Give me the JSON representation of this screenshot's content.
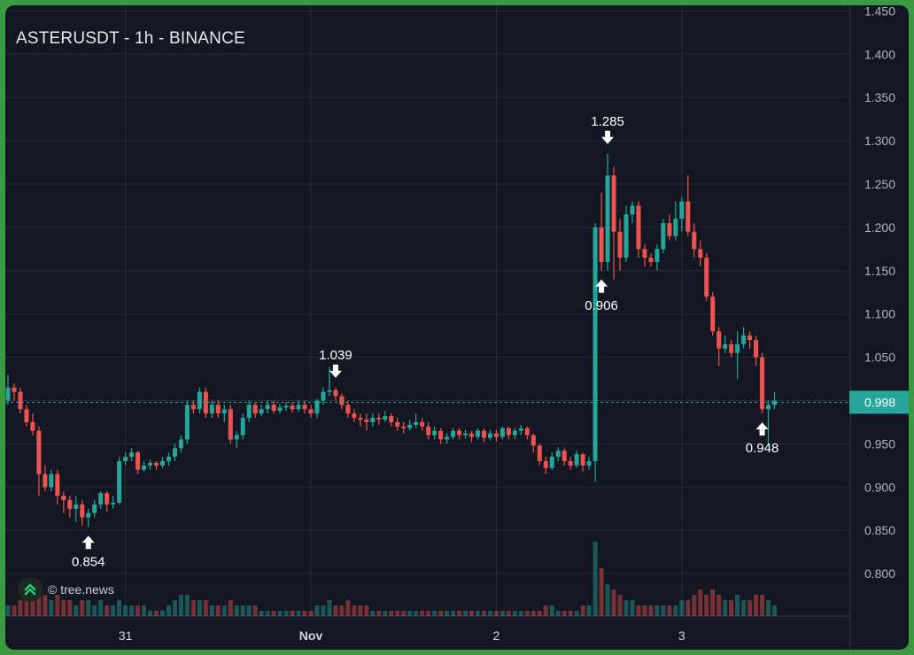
{
  "title": "ASTERUSDT - 1h - BINANCE",
  "watermark": {
    "text": "© tree.news",
    "logo": "tree-logo-icon"
  },
  "colors": {
    "up": "#26a69a",
    "down": "#ef5350",
    "background": "#131722",
    "grid": "#242a36",
    "price_line": "#26a69a",
    "frame": "#3c9a3f"
  },
  "chart_data": {
    "type": "candlestick",
    "symbol": "ASTERUSDT",
    "interval": "1h",
    "exchange": "BINANCE",
    "y_axis": {
      "ticks": [
        "1.450",
        "1.400",
        "1.350",
        "1.300",
        "1.250",
        "1.200",
        "1.150",
        "1.100",
        "1.050",
        "1.000",
        "0.950",
        "0.900",
        "0.850",
        "0.800"
      ],
      "range": [
        0.75,
        1.455
      ]
    },
    "x_axis": {
      "ticks": [
        {
          "label": "31",
          "bar": 19
        },
        {
          "label": "Nov",
          "bar": 49
        },
        {
          "label": "2",
          "bar": 79
        },
        {
          "label": "3",
          "bar": 109
        }
      ]
    },
    "current_price": "0.998",
    "annotations": [
      {
        "label": "0.854",
        "bar": 13,
        "type": "low"
      },
      {
        "label": "1.039",
        "bar": 53,
        "type": "high"
      },
      {
        "label": "0.906",
        "bar": 96,
        "type": "low"
      },
      {
        "label": "1.285",
        "bar": 97,
        "type": "high"
      },
      {
        "label": "0.948",
        "bar": 122,
        "type": "low"
      }
    ],
    "candles": [
      [
        1.0,
        1.015,
        1.03,
        0.995,
        2
      ],
      [
        1.015,
        1.01,
        1.02,
        1.0,
        2
      ],
      [
        1.01,
        0.99,
        1.015,
        0.985,
        3
      ],
      [
        0.99,
        0.975,
        0.995,
        0.97,
        4
      ],
      [
        0.975,
        0.965,
        0.985,
        0.96,
        5
      ],
      [
        0.965,
        0.915,
        0.97,
        0.89,
        5
      ],
      [
        0.915,
        0.9,
        0.925,
        0.895,
        4
      ],
      [
        0.9,
        0.915,
        0.92,
        0.895,
        3
      ],
      [
        0.915,
        0.89,
        0.92,
        0.88,
        4
      ],
      [
        0.89,
        0.885,
        0.895,
        0.87,
        3
      ],
      [
        0.885,
        0.875,
        0.89,
        0.865,
        3
      ],
      [
        0.875,
        0.88,
        0.89,
        0.86,
        2
      ],
      [
        0.88,
        0.865,
        0.885,
        0.855,
        3
      ],
      [
        0.865,
        0.87,
        0.875,
        0.854,
        3
      ],
      [
        0.87,
        0.88,
        0.885,
        0.865,
        2
      ],
      [
        0.88,
        0.893,
        0.895,
        0.875,
        3
      ],
      [
        0.893,
        0.88,
        0.895,
        0.872,
        2
      ],
      [
        0.88,
        0.882,
        0.89,
        0.875,
        2
      ],
      [
        0.882,
        0.93,
        0.935,
        0.88,
        3
      ],
      [
        0.93,
        0.935,
        0.94,
        0.925,
        2
      ],
      [
        0.935,
        0.94,
        0.945,
        0.93,
        2
      ],
      [
        0.94,
        0.92,
        0.942,
        0.915,
        2
      ],
      [
        0.92,
        0.925,
        0.93,
        0.918,
        2
      ],
      [
        0.925,
        0.928,
        0.932,
        0.92,
        1
      ],
      [
        0.928,
        0.925,
        0.93,
        0.92,
        1
      ],
      [
        0.925,
        0.93,
        0.935,
        0.922,
        1
      ],
      [
        0.93,
        0.935,
        0.94,
        0.925,
        2
      ],
      [
        0.935,
        0.945,
        0.95,
        0.93,
        3
      ],
      [
        0.945,
        0.955,
        0.96,
        0.94,
        4
      ],
      [
        0.955,
        0.995,
        1.0,
        0.95,
        4
      ],
      [
        0.995,
        0.99,
        1.0,
        0.985,
        3
      ],
      [
        0.99,
        1.01,
        1.015,
        0.985,
        3
      ],
      [
        1.01,
        0.985,
        1.015,
        0.98,
        3
      ],
      [
        0.985,
        0.995,
        1.0,
        0.98,
        2
      ],
      [
        0.995,
        0.985,
        1.0,
        0.98,
        2
      ],
      [
        0.985,
        0.99,
        0.995,
        0.975,
        2
      ],
      [
        0.99,
        0.955,
        0.995,
        0.95,
        3
      ],
      [
        0.955,
        0.96,
        0.965,
        0.945,
        2
      ],
      [
        0.96,
        0.98,
        0.985,
        0.955,
        2
      ],
      [
        0.98,
        0.995,
        1.0,
        0.975,
        2
      ],
      [
        0.995,
        0.985,
        0.998,
        0.98,
        2
      ],
      [
        0.985,
        0.99,
        0.995,
        0.982,
        1
      ],
      [
        0.99,
        0.995,
        1.0,
        0.985,
        1
      ],
      [
        0.995,
        0.988,
        1.0,
        0.985,
        1
      ],
      [
        0.988,
        0.992,
        0.996,
        0.985,
        1
      ],
      [
        0.992,
        0.994,
        0.998,
        0.988,
        1
      ],
      [
        0.994,
        0.99,
        0.998,
        0.986,
        1
      ],
      [
        0.99,
        0.995,
        1.0,
        0.987,
        1
      ],
      [
        0.995,
        0.99,
        1.0,
        0.985,
        1
      ],
      [
        0.99,
        0.985,
        0.995,
        0.98,
        1
      ],
      [
        0.985,
        1.0,
        1.002,
        0.98,
        2
      ],
      [
        1.0,
        1.01,
        1.015,
        0.995,
        2
      ],
      [
        1.01,
        1.012,
        1.039,
        1.005,
        3
      ],
      [
        1.012,
        1.005,
        1.015,
        1.0,
        2
      ],
      [
        1.005,
        0.995,
        1.008,
        0.99,
        2
      ],
      [
        0.995,
        0.985,
        1.0,
        0.98,
        3
      ],
      [
        0.985,
        0.98,
        0.99,
        0.975,
        2
      ],
      [
        0.98,
        0.978,
        0.985,
        0.97,
        2
      ],
      [
        0.978,
        0.975,
        0.985,
        0.965,
        2
      ],
      [
        0.975,
        0.98,
        0.985,
        0.97,
        1
      ],
      [
        0.98,
        0.978,
        0.985,
        0.972,
        1
      ],
      [
        0.978,
        0.982,
        0.988,
        0.975,
        1
      ],
      [
        0.982,
        0.975,
        0.985,
        0.97,
        1
      ],
      [
        0.975,
        0.97,
        0.98,
        0.965,
        1
      ],
      [
        0.97,
        0.968,
        0.975,
        0.962,
        1
      ],
      [
        0.968,
        0.972,
        0.978,
        0.965,
        1
      ],
      [
        0.972,
        0.975,
        0.985,
        0.968,
        1
      ],
      [
        0.975,
        0.97,
        0.98,
        0.965,
        1
      ],
      [
        0.97,
        0.96,
        0.975,
        0.955,
        1
      ],
      [
        0.96,
        0.965,
        0.97,
        0.955,
        1
      ],
      [
        0.965,
        0.955,
        0.968,
        0.95,
        1
      ],
      [
        0.955,
        0.958,
        0.962,
        0.95,
        1
      ],
      [
        0.958,
        0.965,
        0.968,
        0.955,
        1
      ],
      [
        0.965,
        0.96,
        0.968,
        0.955,
        1
      ],
      [
        0.96,
        0.962,
        0.966,
        0.956,
        1
      ],
      [
        0.962,
        0.958,
        0.965,
        0.952,
        1
      ],
      [
        0.958,
        0.965,
        0.968,
        0.955,
        1
      ],
      [
        0.965,
        0.957,
        0.968,
        0.952,
        1
      ],
      [
        0.957,
        0.962,
        0.966,
        0.954,
        1
      ],
      [
        0.962,
        0.958,
        0.966,
        0.953,
        1
      ],
      [
        0.958,
        0.968,
        0.97,
        0.955,
        1
      ],
      [
        0.968,
        0.96,
        0.97,
        0.955,
        1
      ],
      [
        0.96,
        0.965,
        0.968,
        0.955,
        1
      ],
      [
        0.965,
        0.968,
        0.972,
        0.96,
        1
      ],
      [
        0.968,
        0.96,
        0.97,
        0.955,
        1
      ],
      [
        0.96,
        0.948,
        0.962,
        0.94,
        1
      ],
      [
        0.948,
        0.93,
        0.95,
        0.925,
        1
      ],
      [
        0.93,
        0.922,
        0.935,
        0.915,
        2
      ],
      [
        0.922,
        0.935,
        0.94,
        0.92,
        2
      ],
      [
        0.935,
        0.942,
        0.946,
        0.93,
        1
      ],
      [
        0.942,
        0.93,
        0.945,
        0.925,
        1
      ],
      [
        0.93,
        0.925,
        0.935,
        0.92,
        1
      ],
      [
        0.925,
        0.938,
        0.942,
        0.922,
        1
      ],
      [
        0.938,
        0.925,
        0.94,
        0.918,
        2
      ],
      [
        0.925,
        0.93,
        0.935,
        0.92,
        2
      ],
      [
        0.93,
        1.2,
        1.205,
        0.906,
        14
      ],
      [
        1.2,
        1.16,
        1.24,
        1.15,
        9
      ],
      [
        1.16,
        1.26,
        1.285,
        1.15,
        6
      ],
      [
        1.26,
        1.195,
        1.27,
        1.14,
        5
      ],
      [
        1.195,
        1.165,
        1.21,
        1.15,
        4
      ],
      [
        1.165,
        1.215,
        1.225,
        1.16,
        3
      ],
      [
        1.215,
        1.225,
        1.23,
        1.205,
        3
      ],
      [
        1.225,
        1.175,
        1.23,
        1.165,
        2
      ],
      [
        1.175,
        1.165,
        1.18,
        1.155,
        2
      ],
      [
        1.165,
        1.16,
        1.17,
        1.155,
        2
      ],
      [
        1.16,
        1.175,
        1.18,
        1.15,
        2
      ],
      [
        1.175,
        1.205,
        1.21,
        1.17,
        2
      ],
      [
        1.205,
        1.19,
        1.215,
        1.185,
        2
      ],
      [
        1.19,
        1.21,
        1.23,
        1.185,
        2
      ],
      [
        1.21,
        1.23,
        1.235,
        1.195,
        3
      ],
      [
        1.23,
        1.195,
        1.26,
        1.19,
        3
      ],
      [
        1.195,
        1.175,
        1.205,
        1.165,
        4
      ],
      [
        1.175,
        1.165,
        1.185,
        1.155,
        5
      ],
      [
        1.165,
        1.12,
        1.17,
        1.115,
        4
      ],
      [
        1.12,
        1.08,
        1.125,
        1.075,
        5
      ],
      [
        1.08,
        1.06,
        1.085,
        1.04,
        4
      ],
      [
        1.06,
        1.065,
        1.075,
        1.055,
        3
      ],
      [
        1.065,
        1.055,
        1.07,
        1.05,
        3
      ],
      [
        1.055,
        1.065,
        1.08,
        1.025,
        4
      ],
      [
        1.065,
        1.075,
        1.085,
        1.06,
        3
      ],
      [
        1.075,
        1.07,
        1.08,
        1.06,
        3
      ],
      [
        1.07,
        1.05,
        1.075,
        1.04,
        4
      ],
      [
        1.05,
        0.99,
        1.055,
        0.985,
        4
      ],
      [
        0.99,
        0.995,
        1.0,
        0.948,
        3
      ],
      [
        0.995,
        1.0,
        1.01,
        0.99,
        2
      ]
    ]
  }
}
